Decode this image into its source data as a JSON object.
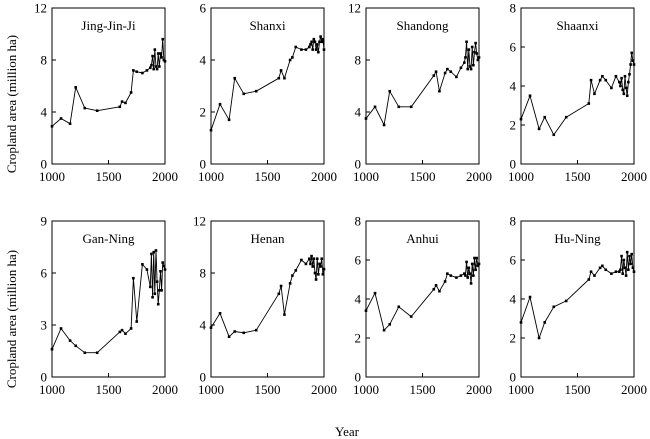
{
  "figure": {
    "ylabel": "Cropland area (million ha)",
    "xlabel": "Year"
  },
  "chart_data": [
    {
      "type": "line",
      "title": "Jing-Jin-Ji",
      "xlim": [
        1000,
        2000
      ],
      "ylim": [
        0,
        12
      ],
      "xticks": [
        1000,
        1500,
        2000
      ],
      "yticks": [
        0,
        4,
        8,
        12
      ],
      "x": [
        1000,
        1080,
        1160,
        1210,
        1290,
        1400,
        1600,
        1620,
        1650,
        1700,
        1720,
        1750,
        1800,
        1840,
        1870,
        1880,
        1890,
        1900,
        1910,
        1920,
        1930,
        1940,
        1950,
        1960,
        1970,
        1980,
        1990,
        2000
      ],
      "y": [
        2.9,
        3.5,
        3.1,
        5.9,
        4.3,
        4.1,
        4.4,
        4.8,
        4.7,
        5.5,
        7.2,
        7.1,
        7.0,
        7.2,
        7.4,
        7.6,
        8.3,
        7.3,
        8.8,
        7.5,
        7.3,
        8.5,
        7.5,
        8.5,
        8.2,
        9.6,
        8.0,
        7.9
      ]
    },
    {
      "type": "line",
      "title": "Shanxi",
      "xlim": [
        1000,
        2000
      ],
      "ylim": [
        0,
        6
      ],
      "xticks": [
        1000,
        1500,
        2000
      ],
      "yticks": [
        0,
        2,
        4,
        6
      ],
      "x": [
        1000,
        1080,
        1160,
        1210,
        1290,
        1400,
        1600,
        1620,
        1650,
        1700,
        1720,
        1750,
        1800,
        1840,
        1870,
        1880,
        1890,
        1900,
        1910,
        1920,
        1930,
        1940,
        1950,
        1960,
        1970,
        1980,
        1990,
        2000
      ],
      "y": [
        1.3,
        2.3,
        1.7,
        3.3,
        2.7,
        2.8,
        3.3,
        3.6,
        3.3,
        4.0,
        4.1,
        4.5,
        4.4,
        4.4,
        4.5,
        4.6,
        4.7,
        4.4,
        4.8,
        4.7,
        4.4,
        4.6,
        4.3,
        4.7,
        4.9,
        4.7,
        4.8,
        4.4
      ]
    },
    {
      "type": "line",
      "title": "Shandong",
      "xlim": [
        1000,
        2000
      ],
      "ylim": [
        0,
        12
      ],
      "xticks": [
        1000,
        1500,
        2000
      ],
      "yticks": [
        0,
        4,
        8,
        12
      ],
      "x": [
        1000,
        1080,
        1160,
        1210,
        1290,
        1400,
        1600,
        1620,
        1650,
        1700,
        1720,
        1750,
        1800,
        1840,
        1870,
        1880,
        1890,
        1900,
        1910,
        1920,
        1930,
        1940,
        1950,
        1960,
        1970,
        1980,
        1990,
        2000
      ],
      "y": [
        3.5,
        4.4,
        3.0,
        5.6,
        4.4,
        4.4,
        6.8,
        7.1,
        5.6,
        7.0,
        7.3,
        7.1,
        6.7,
        7.4,
        7.8,
        8.2,
        9.4,
        7.3,
        8.8,
        7.5,
        7.3,
        9.0,
        7.6,
        8.6,
        9.3,
        8.5,
        8.0,
        8.2
      ]
    },
    {
      "type": "line",
      "title": "Shaanxi",
      "xlim": [
        1000,
        2000
      ],
      "ylim": [
        0,
        8
      ],
      "xticks": [
        1000,
        1500,
        2000
      ],
      "yticks": [
        0,
        2,
        4,
        6,
        8
      ],
      "x": [
        1000,
        1080,
        1160,
        1210,
        1290,
        1400,
        1600,
        1620,
        1650,
        1700,
        1720,
        1750,
        1800,
        1840,
        1870,
        1880,
        1890,
        1900,
        1910,
        1920,
        1930,
        1940,
        1950,
        1960,
        1970,
        1980,
        1990,
        2000
      ],
      "y": [
        2.3,
        3.5,
        1.8,
        2.4,
        1.5,
        2.4,
        3.1,
        4.3,
        3.6,
        4.3,
        4.5,
        4.3,
        3.9,
        4.5,
        4.2,
        4.0,
        4.4,
        3.8,
        3.6,
        4.5,
        3.9,
        3.5,
        4.2,
        4.6,
        5.1,
        5.7,
        5.3,
        5.1
      ]
    },
    {
      "type": "line",
      "title": "Gan-Ning",
      "xlim": [
        1000,
        2000
      ],
      "ylim": [
        0,
        9
      ],
      "xticks": [
        1000,
        1500,
        2000
      ],
      "yticks": [
        0,
        3,
        6,
        9
      ],
      "x": [
        1000,
        1080,
        1160,
        1210,
        1290,
        1400,
        1600,
        1620,
        1650,
        1700,
        1720,
        1750,
        1800,
        1840,
        1870,
        1880,
        1890,
        1900,
        1910,
        1920,
        1930,
        1940,
        1950,
        1960,
        1970,
        1980,
        1990,
        2000
      ],
      "y": [
        1.6,
        2.8,
        2.1,
        1.8,
        1.4,
        1.4,
        2.6,
        2.7,
        2.5,
        2.8,
        5.7,
        3.2,
        6.5,
        6.2,
        5.2,
        7.1,
        4.6,
        7.2,
        4.8,
        7.3,
        5.5,
        4.2,
        5.0,
        6.1,
        5.0,
        6.6,
        6.4,
        6.2
      ]
    },
    {
      "type": "line",
      "title": "Henan",
      "xlim": [
        1000,
        2000
      ],
      "ylim": [
        0,
        12
      ],
      "xticks": [
        1000,
        1500,
        2000
      ],
      "yticks": [
        0,
        4,
        8,
        12
      ],
      "x": [
        1000,
        1080,
        1160,
        1210,
        1290,
        1400,
        1600,
        1620,
        1650,
        1700,
        1720,
        1750,
        1800,
        1840,
        1870,
        1880,
        1890,
        1900,
        1910,
        1920,
        1930,
        1940,
        1950,
        1960,
        1970,
        1980,
        1990,
        2000
      ],
      "y": [
        3.8,
        4.9,
        3.1,
        3.5,
        3.4,
        3.6,
        6.4,
        7.0,
        4.8,
        7.2,
        7.8,
        8.2,
        9.0,
        8.7,
        9.1,
        8.7,
        9.3,
        8.5,
        9.1,
        8.0,
        7.5,
        9.1,
        7.9,
        8.7,
        8.5,
        9.1,
        7.9,
        8.3
      ]
    },
    {
      "type": "line",
      "title": "Anhui",
      "xlim": [
        1000,
        2000
      ],
      "ylim": [
        0,
        8
      ],
      "xticks": [
        1000,
        1500,
        2000
      ],
      "yticks": [
        0,
        2,
        4,
        6,
        8
      ],
      "x": [
        1000,
        1080,
        1160,
        1210,
        1290,
        1400,
        1600,
        1620,
        1650,
        1700,
        1720,
        1750,
        1800,
        1840,
        1870,
        1880,
        1890,
        1900,
        1910,
        1920,
        1930,
        1940,
        1950,
        1960,
        1970,
        1980,
        1990,
        2000
      ],
      "y": [
        3.4,
        4.3,
        2.4,
        2.7,
        3.6,
        3.1,
        4.5,
        4.7,
        4.4,
        4.9,
        5.3,
        5.2,
        5.1,
        5.2,
        5.3,
        5.2,
        5.9,
        5.1,
        5.6,
        5.3,
        4.8,
        5.8,
        5.2,
        6.1,
        5.5,
        6.1,
        5.7,
        5.8
      ]
    },
    {
      "type": "line",
      "title": "Hu-Ning",
      "xlim": [
        1000,
        2000
      ],
      "ylim": [
        0,
        8
      ],
      "xticks": [
        1000,
        1500,
        2000
      ],
      "yticks": [
        0,
        2,
        4,
        6,
        8
      ],
      "x": [
        1000,
        1080,
        1160,
        1210,
        1290,
        1400,
        1600,
        1620,
        1650,
        1700,
        1720,
        1750,
        1800,
        1840,
        1870,
        1880,
        1890,
        1900,
        1910,
        1920,
        1930,
        1940,
        1950,
        1960,
        1970,
        1980,
        1990,
        2000
      ],
      "y": [
        2.8,
        4.1,
        2.0,
        2.8,
        3.6,
        3.9,
        5.0,
        5.4,
        5.2,
        5.6,
        5.7,
        5.5,
        5.3,
        5.4,
        5.4,
        5.5,
        6.2,
        5.3,
        6.0,
        5.6,
        5.2,
        6.4,
        5.5,
        6.2,
        5.8,
        6.3,
        5.6,
        5.4
      ]
    }
  ]
}
